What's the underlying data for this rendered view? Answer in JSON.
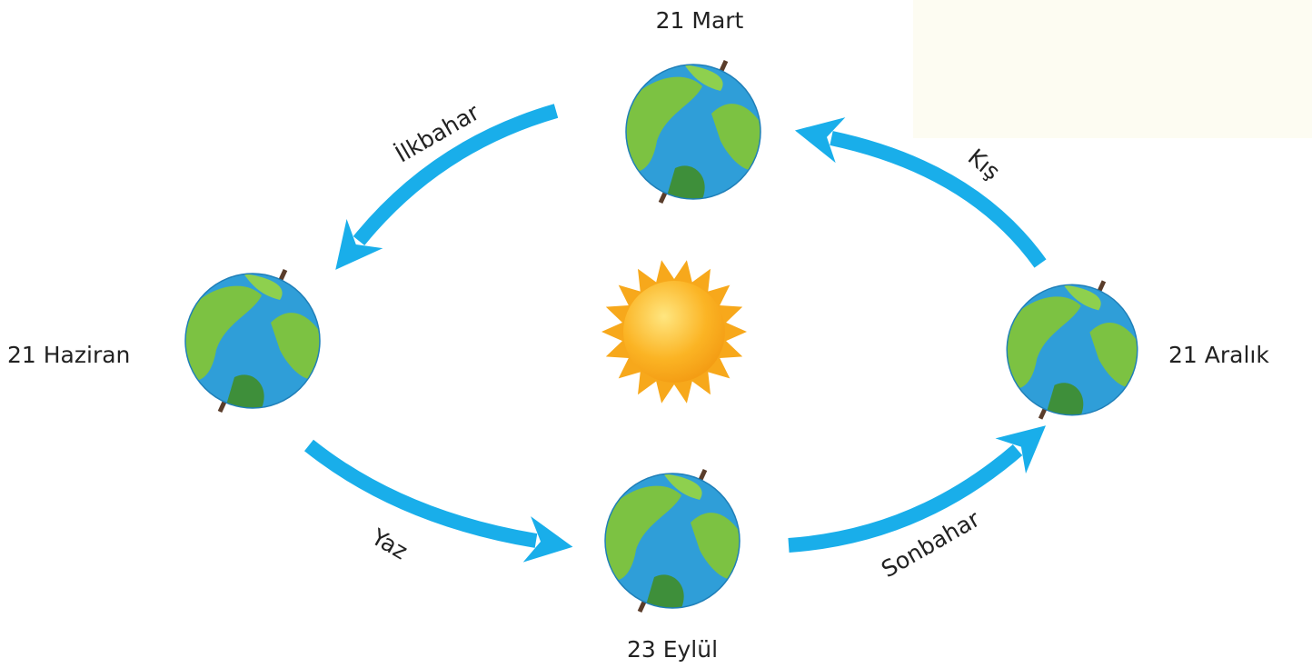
{
  "nodes": [
    {
      "label": "21 Mart"
    },
    {
      "label": "21 Haziran"
    },
    {
      "label": "23 Eylül"
    },
    {
      "label": "21 Aralık"
    }
  ],
  "seasons": [
    {
      "label": "İlkbahar"
    },
    {
      "label": "Kış"
    },
    {
      "label": "Yaz"
    },
    {
      "label": "Sonbahar"
    }
  ]
}
